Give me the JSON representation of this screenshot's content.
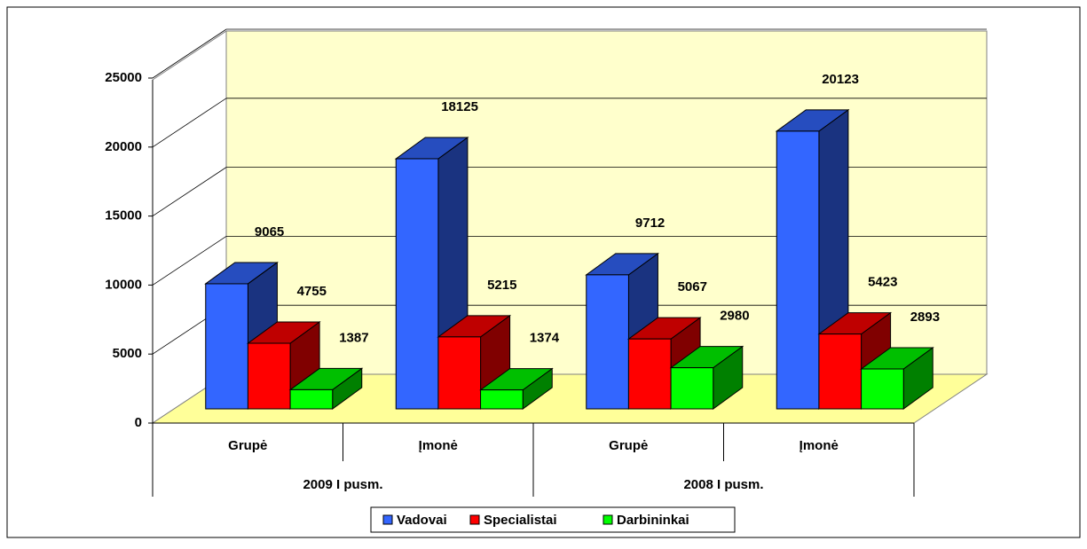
{
  "chart_data": {
    "type": "bar3d",
    "categories": [
      "Grupė",
      "Įmonė",
      "Grupė",
      "Įmonė"
    ],
    "groups": [
      "2009 I pusm.",
      "2008 I pusm."
    ],
    "series": [
      {
        "name": "Vadovai",
        "color": "#3366ff",
        "values": [
          9065,
          18125,
          9712,
          20123
        ]
      },
      {
        "name": "Specialistai",
        "color": "#ff0000",
        "values": [
          4755,
          5215,
          5067,
          5423
        ]
      },
      {
        "name": "Darbininkai",
        "color": "#00ff00",
        "values": [
          1387,
          1374,
          2980,
          2893
        ]
      }
    ],
    "ylim": [
      0,
      25000
    ],
    "yticks": [
      0,
      5000,
      10000,
      15000,
      20000,
      25000
    ],
    "grid": true,
    "legend": "bottom"
  }
}
